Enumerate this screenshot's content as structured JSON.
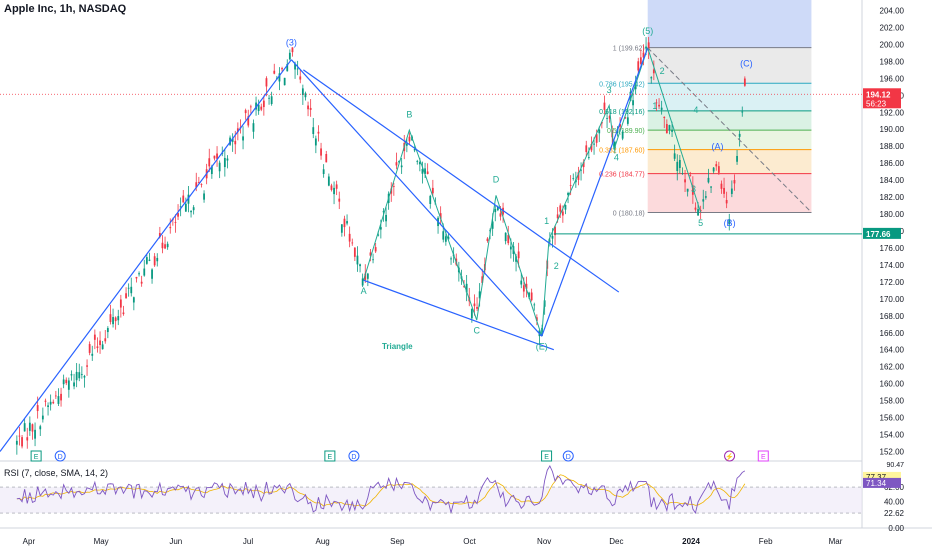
{
  "header": {
    "title": "Apple Inc, 1h, NASDAQ"
  },
  "rsi": {
    "title": "RSI (7, close, SMA, 14, 2)",
    "badges": [
      "77.37",
      "71.34"
    ],
    "top_label": "90.47",
    "line_color": "#7e57c2",
    "ma_color": "#f0b400"
  },
  "colors": {
    "up": "#089981",
    "down": "#f23645",
    "wave": "#2962ff",
    "green": "#22ab94"
  },
  "chart_data": {
    "type": "line",
    "title": "Apple Inc, 1h, NASDAQ",
    "ylim": [
      151,
      205
    ],
    "y_ticks": [
      "152.00",
      "154.00",
      "156.00",
      "158.00",
      "160.00",
      "162.00",
      "164.00",
      "166.00",
      "168.00",
      "170.00",
      "172.00",
      "174.00",
      "176.00",
      "178.00",
      "180.00",
      "182.00",
      "184.00",
      "186.00",
      "188.00",
      "190.00",
      "192.00",
      "194.00",
      "196.00",
      "198.00",
      "200.00",
      "202.00",
      "204.00"
    ],
    "rsi_ticks": [
      "62.00",
      "40.00",
      "22.62",
      "0.00"
    ],
    "x_ticks": [
      "Apr",
      "May",
      "Jun",
      "Jul",
      "Aug",
      "Sep",
      "Oct",
      "Nov",
      "Dec",
      "2024",
      "Feb",
      "Mar"
    ],
    "price_badges": [
      {
        "value": "194.12",
        "sub": "56:23",
        "color": "#f23645"
      },
      {
        "value": "177.66",
        "color": "#089981"
      }
    ],
    "swing_points": [
      {
        "x": "2023-03-27",
        "y": 153.0
      },
      {
        "x": "2023-04-25",
        "y": 162.5
      },
      {
        "x": "2023-06-01",
        "y": 179.0
      },
      {
        "x": "2023-07-19",
        "y": 198.2
      },
      {
        "x": "2023-08-18",
        "y": 172.2
      },
      {
        "x": "2023-09-06",
        "y": 189.9
      },
      {
        "x": "2023-10-04",
        "y": 167.5
      },
      {
        "x": "2023-10-12",
        "y": 182.2
      },
      {
        "x": "2023-10-31",
        "y": 165.6
      },
      {
        "x": "2023-11-03",
        "y": 177.0
      },
      {
        "x": "2023-11-28",
        "y": 192.8
      },
      {
        "x": "2023-11-30",
        "y": 187.6
      },
      {
        "x": "2023-12-14",
        "y": 199.6
      },
      {
        "x": "2023-12-18",
        "y": 193.0
      },
      {
        "x": "2024-01-05",
        "y": 180.2
      },
      {
        "x": "2024-01-12",
        "y": 186.2
      },
      {
        "x": "2024-01-17",
        "y": 180.2
      },
      {
        "x": "2024-01-24",
        "y": 196.0
      }
    ],
    "fib": {
      "levels": [
        {
          "label": "1 (199.62)",
          "value": 199.62
        },
        {
          "label": "0.786 (195.42)",
          "value": 195.42
        },
        {
          "label": "0.618 (192.16)",
          "value": 192.16
        },
        {
          "label": "0.5 (189.90)",
          "value": 189.9
        },
        {
          "label": "0.382 (187.60)",
          "value": 187.6
        },
        {
          "label": "0.236 (184.77)",
          "value": 184.77
        },
        {
          "label": "0 (180.18)",
          "value": 180.18
        }
      ]
    },
    "wave_labels": [
      {
        "text": "(3)",
        "color": "blue"
      },
      {
        "text": "A",
        "color": "green"
      },
      {
        "text": "B",
        "color": "green"
      },
      {
        "text": "C",
        "color": "green"
      },
      {
        "text": "D",
        "color": "green"
      },
      {
        "text": "(E)",
        "color": "green"
      },
      {
        "text": "1",
        "color": "green"
      },
      {
        "text": "2",
        "color": "green"
      },
      {
        "text": "3",
        "color": "green"
      },
      {
        "text": "4",
        "color": "green"
      },
      {
        "text": "(5)",
        "color": "green"
      },
      {
        "text": "1",
        "color": "green"
      },
      {
        "text": "2",
        "color": "green"
      },
      {
        "text": "3",
        "color": "green"
      },
      {
        "text": "4",
        "color": "green"
      },
      {
        "text": "5",
        "color": "green"
      },
      {
        "text": "(A)",
        "color": "blue"
      },
      {
        "text": "(B)",
        "color": "blue"
      },
      {
        "text": "(C)",
        "color": "blue"
      },
      {
        "text": "Triangle",
        "color": "green"
      }
    ],
    "events": [
      {
        "text": "E",
        "color": "green"
      },
      {
        "text": "D",
        "color": "blue"
      },
      {
        "text": "E",
        "color": "green"
      },
      {
        "text": "D",
        "color": "blue"
      },
      {
        "text": "E",
        "color": "green"
      },
      {
        "text": "D",
        "color": "blue"
      },
      {
        "text": "⚡",
        "color": "purple"
      },
      {
        "text": "E",
        "color": "pink"
      }
    ]
  }
}
